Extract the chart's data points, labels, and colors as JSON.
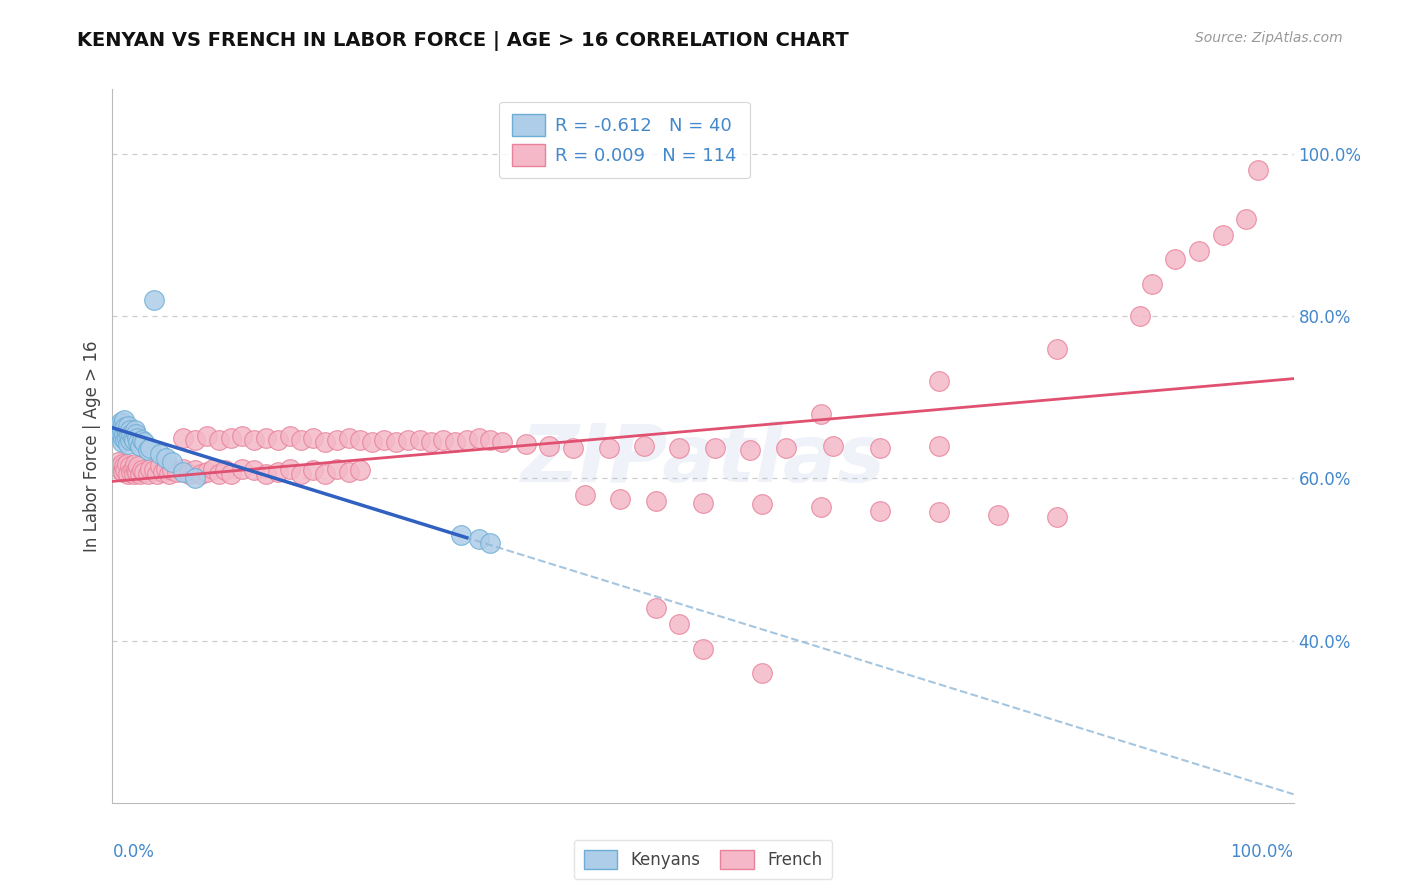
{
  "title": "KENYAN VS FRENCH IN LABOR FORCE | AGE > 16 CORRELATION CHART",
  "source_text": "Source: ZipAtlas.com",
  "ylabel": "In Labor Force | Age > 16",
  "R_kenyan": -0.612,
  "N_kenyan": 40,
  "R_french": 0.009,
  "N_french": 114,
  "legend_label1": "Kenyans",
  "legend_label2": "French",
  "kenyan_color": "#aecde8",
  "kenyan_edge_color": "#6baed6",
  "french_color": "#f4b8c8",
  "french_edge_color": "#e8829a",
  "bg_color": "#ffffff",
  "grid_color": "#cccccc",
  "trend_kenyan_color": "#3060c0",
  "trend_french_color": "#e05070",
  "trend_dashed_color": "#90b8d8",
  "watermark_color": "#aabbdd",
  "ytick_positions": [
    0.4,
    0.6,
    0.8,
    1.0
  ],
  "ytick_labels": [
    "40.0%",
    "60.0%",
    "80.0%",
    "100.0%"
  ],
  "tick_color": "#4488cc",
  "kenyan_x": [
    0.005,
    0.006,
    0.007,
    0.007,
    0.008,
    0.008,
    0.009,
    0.009,
    0.01,
    0.01,
    0.011,
    0.011,
    0.012,
    0.012,
    0.013,
    0.013,
    0.014,
    0.015,
    0.015,
    0.016,
    0.017,
    0.018,
    0.019,
    0.02,
    0.021,
    0.022,
    0.023,
    0.025,
    0.027,
    0.03,
    0.032,
    0.035,
    0.04,
    0.045,
    0.05,
    0.06,
    0.07,
    0.295,
    0.31,
    0.32
  ],
  "kenyan_y": [
    0.66,
    0.665,
    0.655,
    0.67,
    0.645,
    0.66,
    0.65,
    0.668,
    0.655,
    0.672,
    0.648,
    0.663,
    0.658,
    0.65,
    0.642,
    0.665,
    0.653,
    0.66,
    0.648,
    0.655,
    0.65,
    0.648,
    0.66,
    0.655,
    0.65,
    0.645,
    0.64,
    0.648,
    0.645,
    0.635,
    0.638,
    0.82,
    0.63,
    0.625,
    0.62,
    0.608,
    0.6,
    0.53,
    0.525,
    0.52
  ],
  "french_x": [
    0.005,
    0.006,
    0.007,
    0.008,
    0.009,
    0.01,
    0.011,
    0.012,
    0.013,
    0.015,
    0.016,
    0.017,
    0.018,
    0.019,
    0.02,
    0.021,
    0.022,
    0.023,
    0.025,
    0.027,
    0.03,
    0.032,
    0.035,
    0.038,
    0.04,
    0.043,
    0.045,
    0.048,
    0.05,
    0.055,
    0.06,
    0.065,
    0.07,
    0.075,
    0.08,
    0.085,
    0.09,
    0.095,
    0.1,
    0.11,
    0.12,
    0.13,
    0.14,
    0.15,
    0.16,
    0.17,
    0.18,
    0.19,
    0.2,
    0.21,
    0.06,
    0.07,
    0.08,
    0.09,
    0.1,
    0.11,
    0.12,
    0.13,
    0.14,
    0.15,
    0.16,
    0.17,
    0.18,
    0.19,
    0.2,
    0.21,
    0.22,
    0.23,
    0.24,
    0.25,
    0.26,
    0.27,
    0.28,
    0.29,
    0.3,
    0.31,
    0.32,
    0.33,
    0.35,
    0.37,
    0.39,
    0.42,
    0.45,
    0.48,
    0.51,
    0.54,
    0.57,
    0.61,
    0.65,
    0.7,
    0.4,
    0.43,
    0.46,
    0.5,
    0.55,
    0.6,
    0.65,
    0.7,
    0.75,
    0.8,
    0.6,
    0.7,
    0.8,
    0.87,
    0.88,
    0.9,
    0.92,
    0.94,
    0.96,
    0.97,
    0.46,
    0.48,
    0.5,
    0.55
  ],
  "french_y": [
    0.62,
    0.615,
    0.61,
    0.618,
    0.608,
    0.615,
    0.61,
    0.618,
    0.605,
    0.615,
    0.608,
    0.612,
    0.605,
    0.618,
    0.61,
    0.608,
    0.615,
    0.605,
    0.61,
    0.608,
    0.605,
    0.612,
    0.61,
    0.605,
    0.615,
    0.608,
    0.612,
    0.605,
    0.61,
    0.608,
    0.612,
    0.605,
    0.61,
    0.605,
    0.608,
    0.612,
    0.605,
    0.61,
    0.605,
    0.612,
    0.61,
    0.605,
    0.608,
    0.612,
    0.605,
    0.61,
    0.605,
    0.612,
    0.608,
    0.61,
    0.65,
    0.648,
    0.652,
    0.648,
    0.65,
    0.652,
    0.648,
    0.65,
    0.648,
    0.652,
    0.648,
    0.65,
    0.645,
    0.648,
    0.65,
    0.648,
    0.645,
    0.648,
    0.645,
    0.648,
    0.648,
    0.645,
    0.648,
    0.645,
    0.648,
    0.65,
    0.648,
    0.645,
    0.643,
    0.64,
    0.638,
    0.638,
    0.64,
    0.638,
    0.638,
    0.635,
    0.638,
    0.64,
    0.638,
    0.64,
    0.58,
    0.575,
    0.572,
    0.57,
    0.568,
    0.565,
    0.56,
    0.558,
    0.555,
    0.552,
    0.68,
    0.72,
    0.76,
    0.8,
    0.84,
    0.87,
    0.88,
    0.9,
    0.92,
    0.98,
    0.44,
    0.42,
    0.39,
    0.36
  ]
}
